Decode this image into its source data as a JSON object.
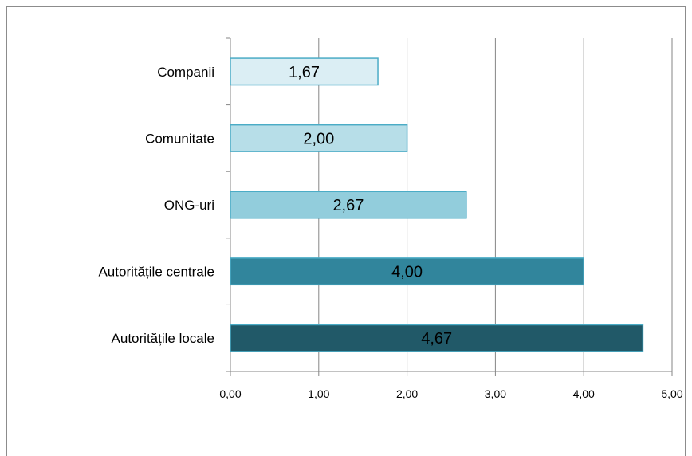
{
  "chart_data": {
    "type": "bar",
    "orientation": "horizontal",
    "categories": [
      "Autoritățile locale",
      "Autoritățile centrale",
      "ONG-uri",
      "Comunitate",
      "Companii"
    ],
    "values": [
      4.67,
      4.0,
      2.67,
      2.0,
      1.67
    ],
    "value_labels": [
      "4,67",
      "4,00",
      "2,67",
      "2,00",
      "1,67"
    ],
    "xlim": [
      0,
      5
    ],
    "x_ticks": [
      0,
      1,
      2,
      3,
      4,
      5
    ],
    "x_tick_labels": [
      "0,00",
      "1,00",
      "2,00",
      "3,00",
      "4,00",
      "5,00"
    ],
    "grid": "vertical",
    "legend": "none",
    "title": "",
    "xlabel": "",
    "ylabel": "",
    "colors": [
      "#215968",
      "#31859c",
      "#92cddc",
      "#b7dee8",
      "#dbeef4"
    ],
    "edge_color": "#4bacc6",
    "grid_color": "#868686"
  }
}
